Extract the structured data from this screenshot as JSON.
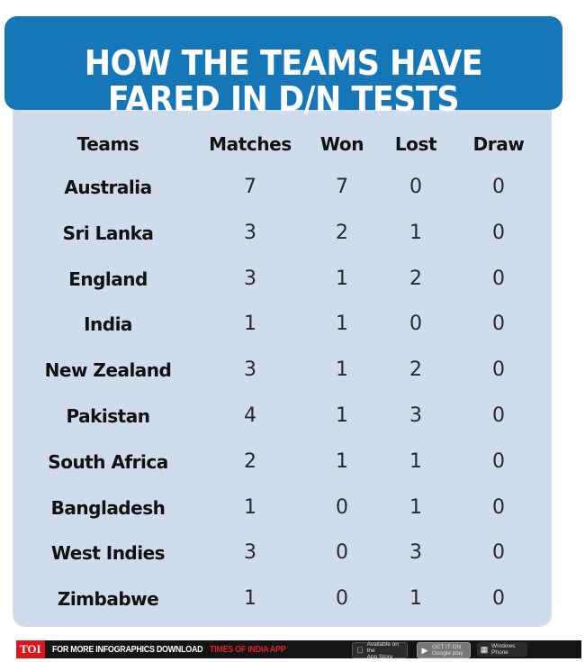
{
  "title": {
    "line1": "HOW THE TEAMS HAVE",
    "line2": "FARED IN D/N TESTS"
  },
  "chart_data": {
    "type": "table",
    "columns": [
      "Teams",
      "Matches",
      "Won",
      "Lost",
      "Draw"
    ],
    "rows": [
      {
        "team": "Australia",
        "matches": 7,
        "won": 7,
        "lost": 0,
        "draw": 0
      },
      {
        "team": "Sri Lanka",
        "matches": 3,
        "won": 2,
        "lost": 1,
        "draw": 0
      },
      {
        "team": "England",
        "matches": 3,
        "won": 1,
        "lost": 2,
        "draw": 0
      },
      {
        "team": "India",
        "matches": 1,
        "won": 1,
        "lost": 0,
        "draw": 0
      },
      {
        "team": "New Zealand",
        "matches": 3,
        "won": 1,
        "lost": 2,
        "draw": 0
      },
      {
        "team": "Pakistan",
        "matches": 4,
        "won": 1,
        "lost": 3,
        "draw": 0
      },
      {
        "team": "South Africa",
        "matches": 2,
        "won": 1,
        "lost": 1,
        "draw": 0
      },
      {
        "team": "Bangladesh",
        "matches": 1,
        "won": 0,
        "lost": 1,
        "draw": 0
      },
      {
        "team": "West Indies",
        "matches": 3,
        "won": 0,
        "lost": 3,
        "draw": 0
      },
      {
        "team": "Zimbabwe",
        "matches": 1,
        "won": 0,
        "lost": 1,
        "draw": 0
      }
    ]
  },
  "footer": {
    "logo": "TOI",
    "text": "FOR MORE INFOGRAPHICS DOWNLOAD",
    "brand": "TIMES OF INDIA APP",
    "appstore": {
      "icon": "apple-icon",
      "top": "Available on the",
      "bottom": "App Store"
    },
    "gplay": {
      "icon": "google-play-icon",
      "top": "GET IT ON",
      "bottom": "Google play"
    },
    "windows": {
      "icon": "windows-icon",
      "top": "Windows",
      "bottom": "Phone"
    }
  },
  "colors": {
    "header_bg": "#1577b8",
    "panel_bg": "#cedcec",
    "footer_bg": "#141414",
    "brand_red": "#e0202a"
  }
}
